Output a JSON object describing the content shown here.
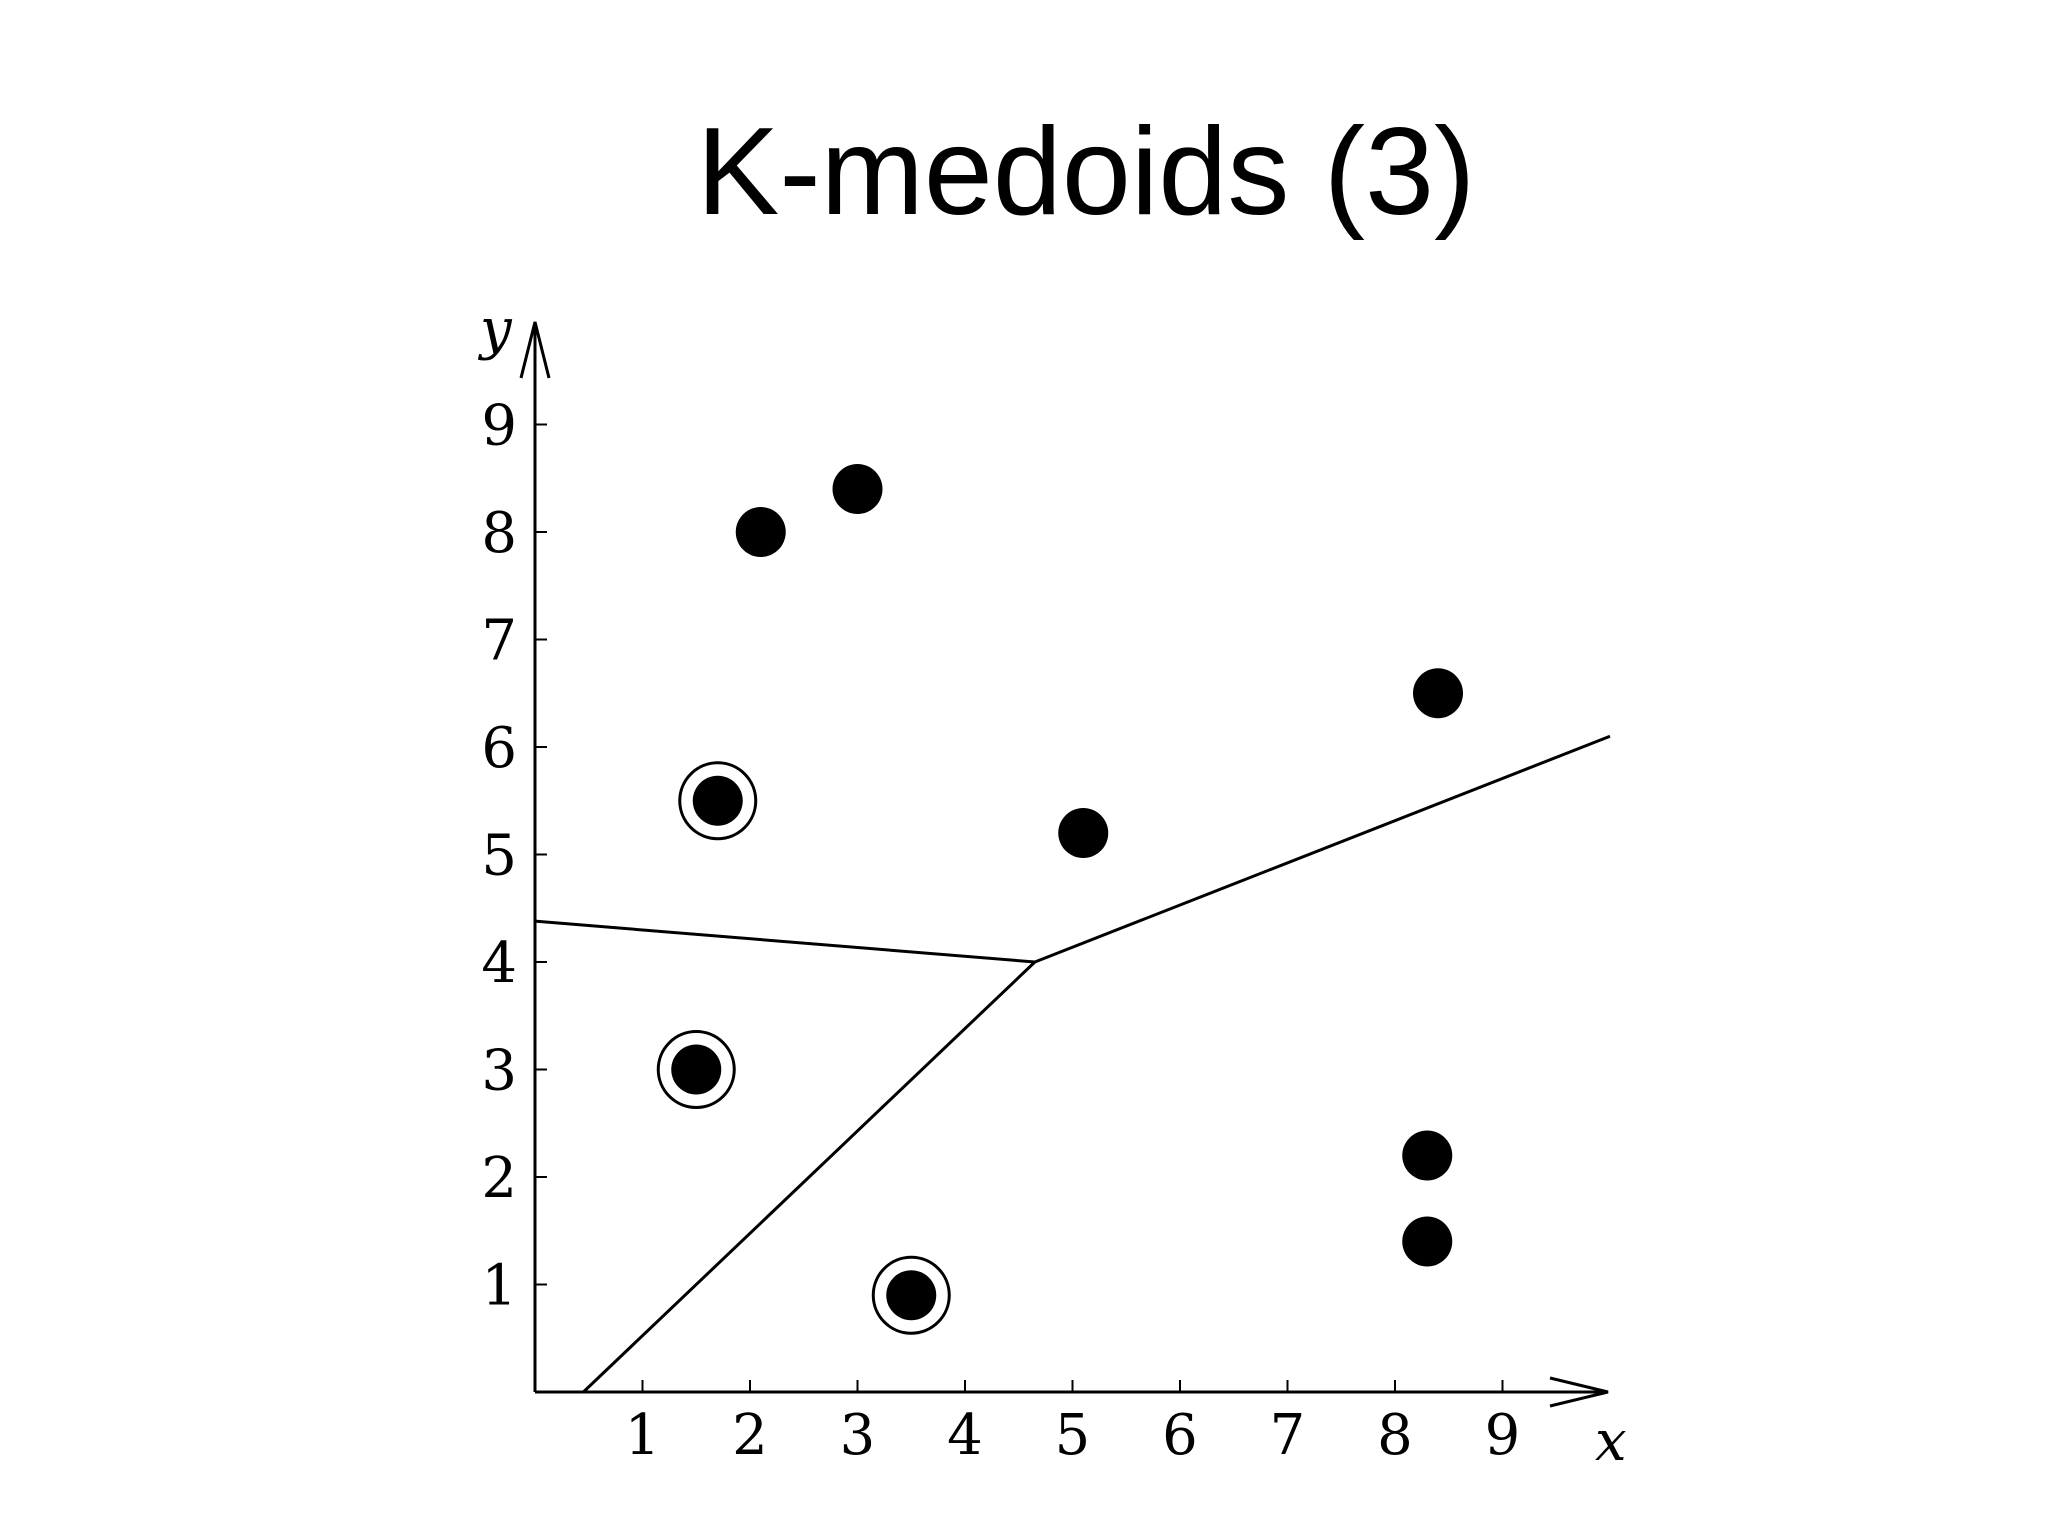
{
  "slide": {
    "title": "K-medoids (3)"
  },
  "chart_data": {
    "type": "scatter",
    "title": "K-medoids (3)",
    "xlabel": "x",
    "ylabel": "y",
    "xlim": [
      0,
      10
    ],
    "ylim": [
      0,
      10
    ],
    "xticks": [
      "1",
      "2",
      "3",
      "4",
      "5",
      "6",
      "7",
      "8",
      "9"
    ],
    "yticks": [
      "1",
      "2",
      "3",
      "4",
      "5",
      "6",
      "7",
      "8",
      "9"
    ],
    "grid": false,
    "colors": {
      "points": "#000000",
      "lines": "#000000"
    },
    "points": [
      {
        "x": 2.1,
        "y": 8.0
      },
      {
        "x": 3.0,
        "y": 8.4
      },
      {
        "x": 8.4,
        "y": 6.5
      },
      {
        "x": 1.7,
        "y": 5.5,
        "medoid": true
      },
      {
        "x": 5.1,
        "y": 5.2
      },
      {
        "x": 1.5,
        "y": 3.0,
        "medoid": true
      },
      {
        "x": 8.3,
        "y": 2.2
      },
      {
        "x": 8.3,
        "y": 1.4
      },
      {
        "x": 3.5,
        "y": 0.9,
        "medoid": true
      }
    ],
    "boundaries": [
      [
        {
          "x": 0.0,
          "y": 4.38
        },
        {
          "x": 4.65,
          "y": 4.0
        }
      ],
      [
        {
          "x": 4.65,
          "y": 4.0
        },
        {
          "x": 0.45,
          "y": 0.0
        }
      ],
      [
        {
          "x": 4.65,
          "y": 4.0
        },
        {
          "x": 10.0,
          "y": 6.1
        }
      ]
    ]
  }
}
